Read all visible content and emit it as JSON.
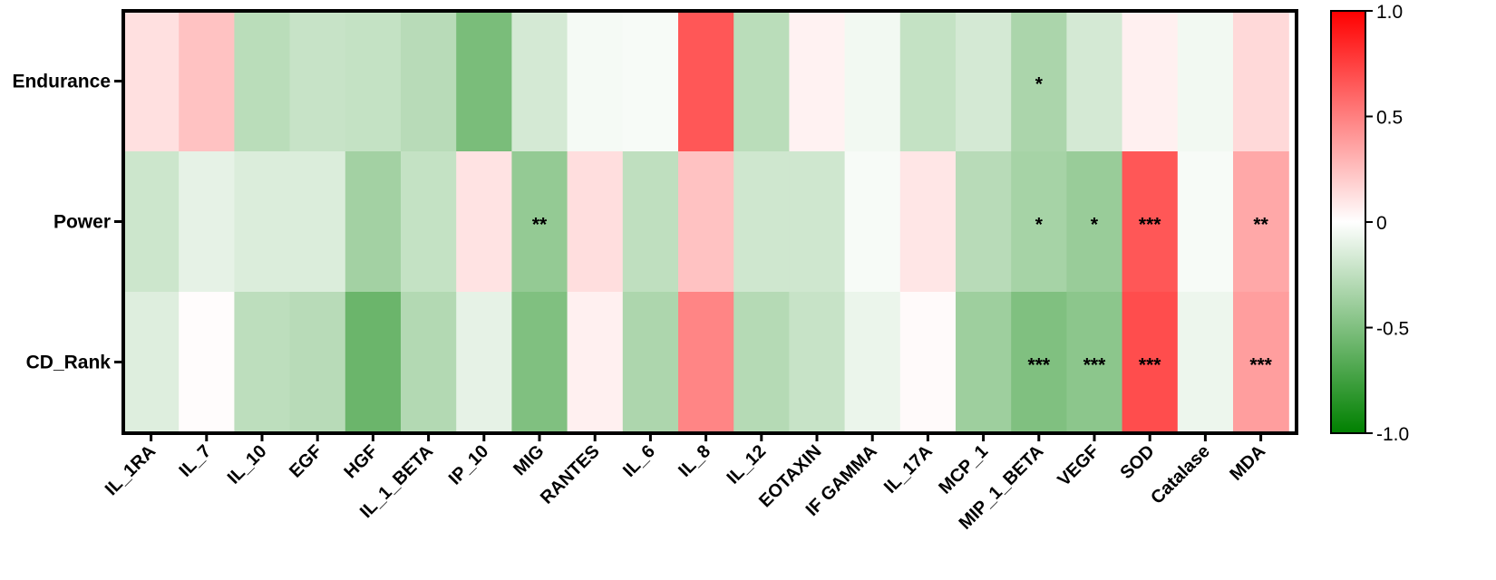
{
  "chart_data": {
    "type": "heatmap",
    "rows": [
      "Endurance",
      "Power",
      "CD_Rank"
    ],
    "columns": [
      "IL_1RA",
      "IL_7",
      "IL_10",
      "EGF",
      "HGF",
      "IL_1_BETA",
      "IP_10",
      "MIG",
      "RANTES",
      "IL_6",
      "IL_8",
      "IL_12",
      "EOTAXIN",
      "IF GAMMA",
      "IL_17A",
      "MCP_1",
      "MIP_1_BETA",
      "VEGF",
      "SOD",
      "Catalase",
      "MDA"
    ],
    "values": [
      [
        0.12,
        0.24,
        -0.27,
        -0.22,
        -0.23,
        -0.28,
        -0.52,
        -0.17,
        -0.04,
        -0.03,
        0.66,
        -0.27,
        0.05,
        -0.05,
        -0.23,
        -0.17,
        -0.33,
        -0.17,
        0.06,
        -0.05,
        0.15
      ],
      [
        -0.2,
        -0.1,
        -0.14,
        -0.14,
        -0.36,
        -0.23,
        0.11,
        -0.42,
        0.13,
        -0.25,
        0.24,
        -0.19,
        -0.19,
        -0.03,
        0.1,
        -0.28,
        -0.35,
        -0.4,
        0.66,
        -0.03,
        0.34
      ],
      [
        -0.13,
        0.01,
        -0.26,
        -0.28,
        -0.58,
        -0.3,
        -0.1,
        -0.5,
        0.06,
        -0.32,
        0.48,
        -0.29,
        -0.22,
        -0.08,
        0.02,
        -0.38,
        -0.5,
        -0.45,
        0.7,
        -0.07,
        0.38
      ]
    ],
    "significance": [
      [
        "",
        "",
        "",
        "",
        "",
        "",
        "",
        "",
        "",
        "",
        "",
        "",
        "",
        "",
        "",
        "",
        "*",
        "",
        "",
        "",
        ""
      ],
      [
        "",
        "",
        "",
        "",
        "",
        "",
        "",
        "**",
        "",
        "",
        "",
        "",
        "",
        "",
        "",
        "",
        "*",
        "*",
        "***",
        "",
        "**"
      ],
      [
        "",
        "",
        "",
        "",
        "",
        "",
        "",
        "",
        "",
        "",
        "",
        "",
        "",
        "",
        "",
        "",
        "***",
        "***",
        "***",
        "",
        "***"
      ]
    ],
    "colorbar": {
      "min": -1.0,
      "max": 1.0,
      "ticks": [
        1.0,
        0.5,
        0,
        -0.5,
        -1.0
      ],
      "tick_labels": [
        "1.0",
        "0.5",
        "0",
        "-0.5",
        "-1.0"
      ],
      "colors": {
        "max": "#ff0000",
        "mid": "#ffffff",
        "min": "#008000"
      }
    }
  }
}
